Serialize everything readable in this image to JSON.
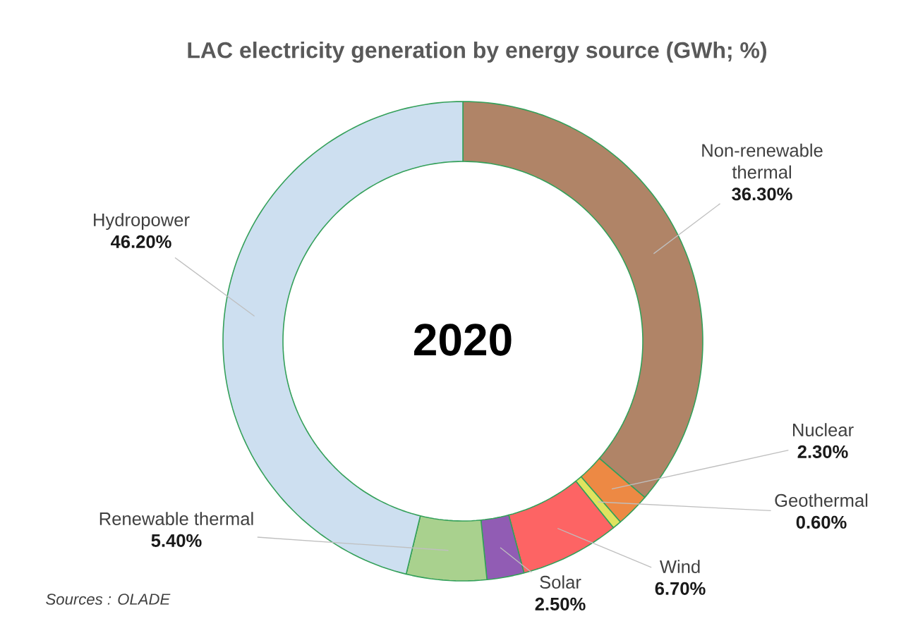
{
  "chart_data": {
    "type": "donut",
    "title": "LAC electricity generation by energy source (GWh; %)",
    "categories": [
      "Non-renewable thermal",
      "Nuclear",
      "Geothermal",
      "Wind",
      "Solar",
      "Renewable thermal",
      "Hydropower"
    ],
    "values": [
      36.3,
      2.3,
      0.6,
      6.7,
      2.5,
      5.4,
      46.2
    ],
    "value_labels": [
      "36.30%",
      "2.30%",
      "0.60%",
      "6.70%",
      "2.50%",
      "5.40%",
      "46.20%"
    ],
    "colors": [
      "#b08467",
      "#ed8944",
      "#dfe35f",
      "#fd6464",
      "#915cb4",
      "#a9d18e",
      "#cddff0"
    ],
    "annotations": [
      "2020",
      "Sources : OLADE"
    ]
  }
}
